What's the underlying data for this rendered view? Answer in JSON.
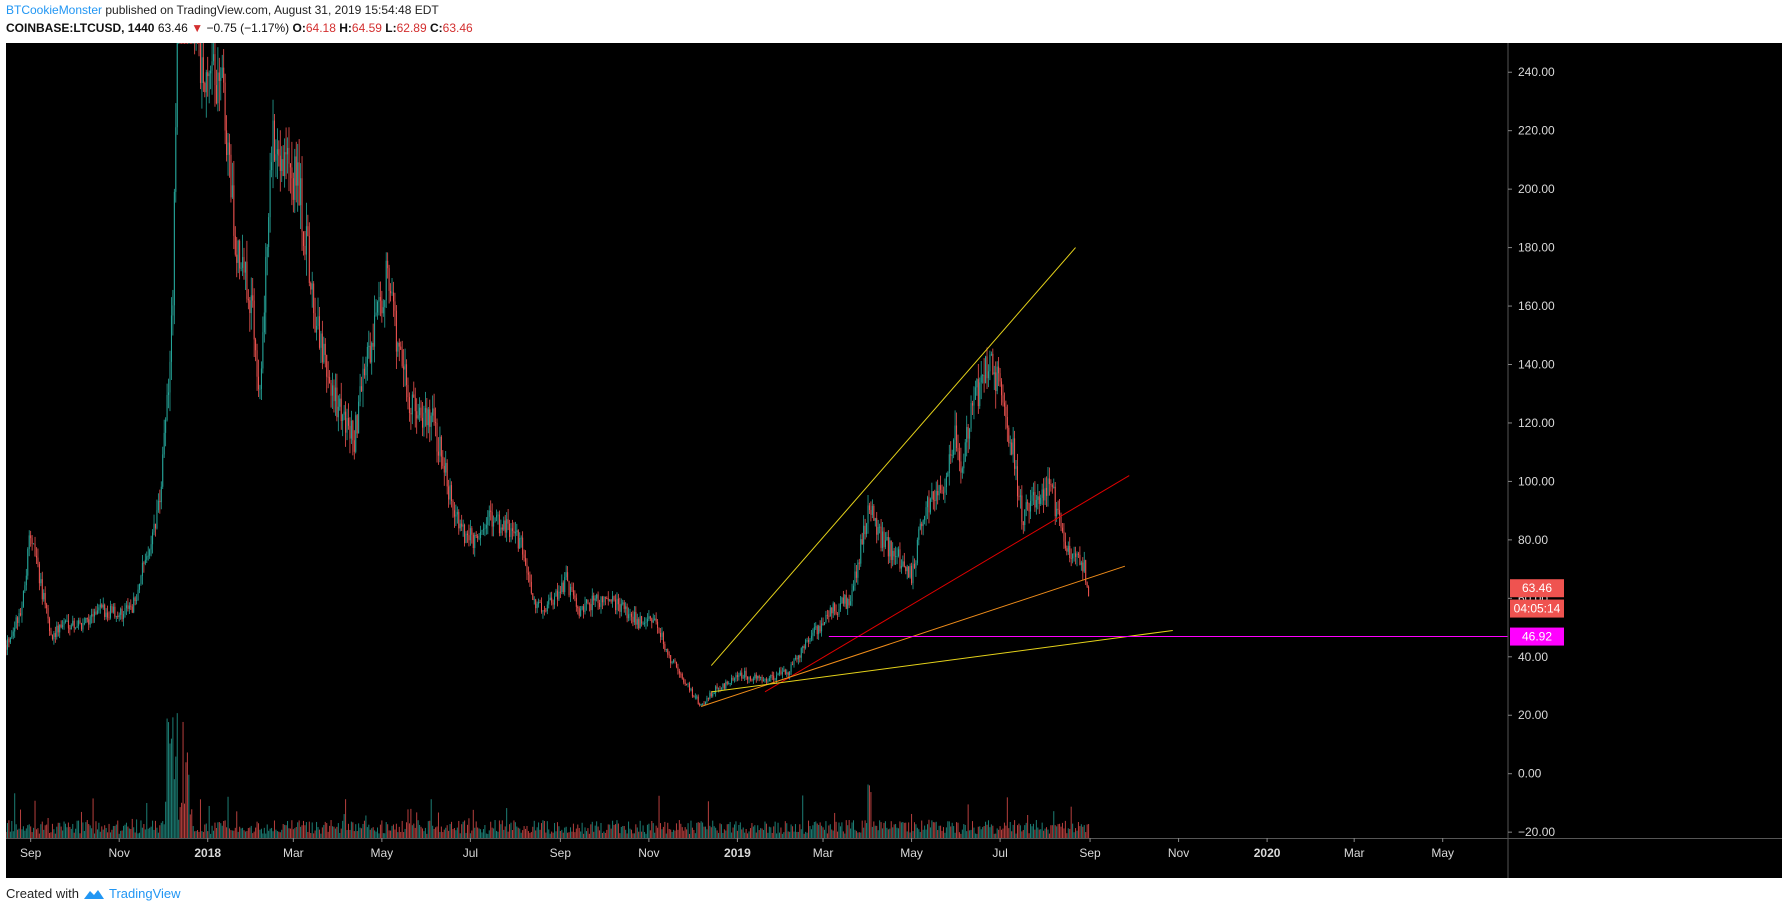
{
  "header": {
    "author": "BTCookieMonster",
    "published_text": " published on TradingView.com, August 31, 2019 15:54:48 EDT"
  },
  "symbol_bar": {
    "symbol": "COINBASE:LTCUSD, 1440",
    "last": "63.46",
    "arrow": "▼",
    "change": "−0.75 (−1.17%)",
    "o_label": "O:",
    "o": "64.18",
    "h_label": "H:",
    "h": "64.59",
    "l_label": "L:",
    "l": "62.89",
    "c_label": "C:",
    "c": "63.46"
  },
  "footer": {
    "created_with": "Created with",
    "brand": "TradingView"
  },
  "chart_data": {
    "type": "candlestick",
    "y_ticks": [
      -20,
      0,
      20,
      40,
      60,
      80,
      100,
      120,
      140,
      160,
      180,
      200,
      220,
      240
    ],
    "y_tick_labels": [
      "−20.00",
      "0.00",
      "20.00",
      "40.00",
      "60.00",
      "80.00",
      "100.00",
      "120.00",
      "140.00",
      "160.00",
      "180.00",
      "200.00",
      "220.00",
      "240.00"
    ],
    "ylim": [
      -22,
      250
    ],
    "x_range": [
      "2017-08-15",
      "2020-06-15"
    ],
    "x_ticks": [
      {
        "date": "2017-09-01",
        "label": "Sep",
        "bold": false
      },
      {
        "date": "2017-11-01",
        "label": "Nov",
        "bold": false
      },
      {
        "date": "2018-01-01",
        "label": "2018",
        "bold": true
      },
      {
        "date": "2018-03-01",
        "label": "Mar",
        "bold": false
      },
      {
        "date": "2018-05-01",
        "label": "May",
        "bold": false
      },
      {
        "date": "2018-07-01",
        "label": "Jul",
        "bold": false
      },
      {
        "date": "2018-09-01",
        "label": "Sep",
        "bold": false
      },
      {
        "date": "2018-11-01",
        "label": "Nov",
        "bold": false
      },
      {
        "date": "2019-01-01",
        "label": "2019",
        "bold": true
      },
      {
        "date": "2019-03-01",
        "label": "Mar",
        "bold": false
      },
      {
        "date": "2019-05-01",
        "label": "May",
        "bold": false
      },
      {
        "date": "2019-07-01",
        "label": "Jul",
        "bold": false
      },
      {
        "date": "2019-09-01",
        "label": "Sep",
        "bold": false
      },
      {
        "date": "2019-11-01",
        "label": "Nov",
        "bold": false
      },
      {
        "date": "2020-01-01",
        "label": "2020",
        "bold": true
      },
      {
        "date": "2020-03-01",
        "label": "Mar",
        "bold": false
      },
      {
        "date": "2020-05-01",
        "label": "May",
        "bold": false
      }
    ],
    "price_path": [
      [
        "2017-08-15",
        44
      ],
      [
        "2017-08-25",
        55
      ],
      [
        "2017-09-01",
        82
      ],
      [
        "2017-09-06",
        70
      ],
      [
        "2017-09-15",
        47
      ],
      [
        "2017-09-25",
        52
      ],
      [
        "2017-10-05",
        51
      ],
      [
        "2017-10-20",
        56
      ],
      [
        "2017-11-01",
        55
      ],
      [
        "2017-11-10",
        56
      ],
      [
        "2017-11-20",
        75
      ],
      [
        "2017-11-28",
        90
      ],
      [
        "2017-12-01",
        105
      ],
      [
        "2017-12-08",
        160
      ],
      [
        "2017-12-12",
        300
      ],
      [
        "2017-12-20",
        270
      ],
      [
        "2018-01-01",
        230
      ],
      [
        "2018-01-10",
        245
      ],
      [
        "2018-01-20",
        180
      ],
      [
        "2018-02-01",
        160
      ],
      [
        "2018-02-06",
        130
      ],
      [
        "2018-02-15",
        220
      ],
      [
        "2018-02-25",
        210
      ],
      [
        "2018-03-05",
        200
      ],
      [
        "2018-03-18",
        150
      ],
      [
        "2018-03-25",
        135
      ],
      [
        "2018-04-05",
        120
      ],
      [
        "2018-04-12",
        115
      ],
      [
        "2018-04-20",
        140
      ],
      [
        "2018-04-28",
        155
      ],
      [
        "2018-05-05",
        175
      ],
      [
        "2018-05-12",
        145
      ],
      [
        "2018-05-22",
        125
      ],
      [
        "2018-06-05",
        122
      ],
      [
        "2018-06-15",
        100
      ],
      [
        "2018-06-25",
        82
      ],
      [
        "2018-07-05",
        80
      ],
      [
        "2018-07-15",
        87
      ],
      [
        "2018-07-25",
        85
      ],
      [
        "2018-08-05",
        78
      ],
      [
        "2018-08-15",
        56
      ],
      [
        "2018-08-25",
        58
      ],
      [
        "2018-09-05",
        66
      ],
      [
        "2018-09-15",
        55
      ],
      [
        "2018-09-25",
        60
      ],
      [
        "2018-10-10",
        58
      ],
      [
        "2018-10-25",
        52
      ],
      [
        "2018-11-05",
        53
      ],
      [
        "2018-11-15",
        40
      ],
      [
        "2018-11-25",
        32
      ],
      [
        "2018-12-07",
        23
      ],
      [
        "2018-12-15",
        28
      ],
      [
        "2018-12-25",
        31
      ],
      [
        "2019-01-05",
        34
      ],
      [
        "2019-01-20",
        32
      ],
      [
        "2019-02-05",
        35
      ],
      [
        "2019-02-20",
        46
      ],
      [
        "2019-03-05",
        55
      ],
      [
        "2019-03-20",
        60
      ],
      [
        "2019-04-02",
        92
      ],
      [
        "2019-04-10",
        80
      ],
      [
        "2019-04-25",
        72
      ],
      [
        "2019-05-01",
        68
      ],
      [
        "2019-05-10",
        90
      ],
      [
        "2019-05-20",
        95
      ],
      [
        "2019-05-31",
        115
      ],
      [
        "2019-06-05",
        105
      ],
      [
        "2019-06-12",
        125
      ],
      [
        "2019-06-20",
        138
      ],
      [
        "2019-06-26",
        140
      ],
      [
        "2019-07-02",
        128
      ],
      [
        "2019-07-10",
        110
      ],
      [
        "2019-07-16",
        88
      ],
      [
        "2019-07-25",
        94
      ],
      [
        "2019-08-05",
        98
      ],
      [
        "2019-08-12",
        84
      ],
      [
        "2019-08-20",
        74
      ],
      [
        "2019-08-28",
        70
      ],
      [
        "2019-08-31",
        63.46
      ]
    ],
    "trend_lines": [
      {
        "color": "#e5d21a",
        "from": [
          "2018-12-14",
          37
        ],
        "to": [
          "2019-08-22",
          180
        ]
      },
      {
        "color": "#e00000",
        "from": [
          "2019-01-20",
          28
        ],
        "to": [
          "2019-09-28",
          102
        ]
      },
      {
        "color": "#ef8c1a",
        "from": [
          "2018-12-07",
          23
        ],
        "to": [
          "2019-09-25",
          71
        ]
      },
      {
        "color": "#e5d21a",
        "from": [
          "2018-12-14",
          28
        ],
        "to": [
          "2019-10-28",
          49
        ]
      }
    ],
    "horizontal_line": {
      "color": "#ff00ff",
      "value": 46.92,
      "from": "2019-03-05"
    },
    "price_labels": [
      {
        "text": "63.46",
        "color": "#ef5350",
        "value": 63.46
      },
      {
        "text": "04:05:14",
        "color": "#ef5350",
        "value": 56.5
      },
      {
        "text": "46.92",
        "color": "#ff00ff",
        "value": 46.92
      }
    ],
    "colors": {
      "up": "#26a69a",
      "down": "#ef5350",
      "background": "#000000",
      "axis_text": "#d9d9d9"
    }
  }
}
